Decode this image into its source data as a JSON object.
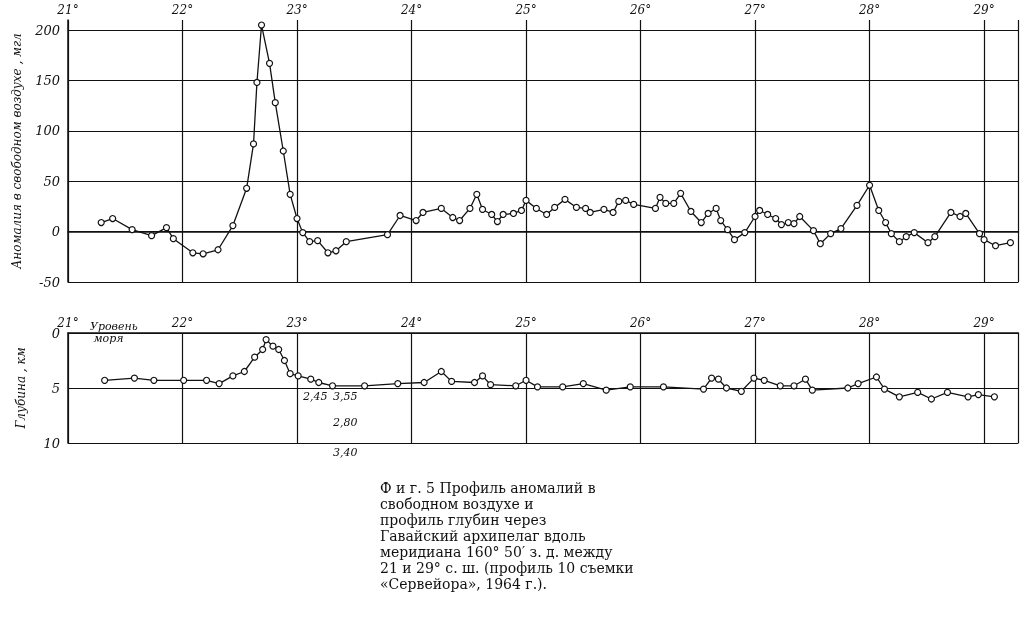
{
  "chart_data": [
    {
      "type": "line",
      "ylabel": "Аномалия в свободном воздухе , мгл",
      "xlim": [
        21,
        29.3
      ],
      "ylim": [
        -50,
        210
      ],
      "xticks": [
        {
          "value": 21,
          "label": "21°"
        },
        {
          "value": 22,
          "label": "22°"
        },
        {
          "value": 23,
          "label": "23°"
        },
        {
          "value": 24,
          "label": "24°"
        },
        {
          "value": 25,
          "label": "25°"
        },
        {
          "value": 26,
          "label": "26°"
        },
        {
          "value": 27,
          "label": "27°"
        },
        {
          "value": 28,
          "label": "28°"
        },
        {
          "value": 29,
          "label": "29°"
        }
      ],
      "yticks": [
        -50,
        0,
        50,
        100,
        150,
        200
      ],
      "grid": true,
      "marker": "circle",
      "line_style": "solid",
      "series": [
        {
          "color": "#111111",
          "x": [
            21.29,
            21.39,
            21.56,
            21.73,
            21.86,
            21.92,
            22.09,
            22.18,
            22.31,
            22.44,
            22.56,
            22.62,
            22.65,
            22.69,
            22.76,
            22.81,
            22.88,
            22.94,
            23.0,
            23.05,
            23.11,
            23.18,
            23.27,
            23.34,
            23.43,
            23.79,
            23.9,
            24.04,
            24.1,
            24.26,
            24.36,
            24.42,
            24.51,
            24.57,
            24.62,
            24.7,
            24.75,
            24.8,
            24.89,
            24.96,
            25.0,
            25.09,
            25.18,
            25.25,
            25.34,
            25.44,
            25.52,
            25.56,
            25.68,
            25.76,
            25.81,
            25.87,
            25.94,
            26.13,
            26.17,
            26.22,
            26.29,
            26.35,
            26.44,
            26.53,
            26.59,
            26.66,
            26.7,
            26.76,
            26.82,
            26.91,
            27.0,
            27.04,
            27.11,
            27.18,
            27.23,
            27.29,
            27.34,
            27.39,
            27.51,
            27.57,
            27.66,
            27.75,
            27.89,
            28.0,
            28.08,
            28.14,
            28.19,
            28.26,
            28.32,
            28.39,
            28.51,
            28.57,
            28.71,
            28.79,
            28.84,
            28.96,
            29.0,
            29.1,
            29.23
          ],
          "values": [
            9,
            13,
            2,
            -4,
            4,
            -7,
            -21,
            -22,
            -18,
            6,
            43,
            87,
            148,
            205,
            167,
            128,
            80,
            37,
            13,
            -1,
            -10,
            -9,
            -21,
            -19,
            -10,
            -3,
            16,
            11,
            19,
            23,
            14,
            11,
            23,
            37,
            22,
            17,
            10,
            17,
            18,
            21,
            31,
            23,
            17,
            24,
            32,
            24,
            23,
            19,
            22,
            19,
            30,
            31,
            27,
            23,
            34,
            28,
            28,
            38,
            20,
            9,
            18,
            23,
            11,
            2,
            -8,
            -1,
            15,
            21,
            17,
            13,
            7,
            9,
            8,
            15,
            1,
            -12,
            -2,
            3,
            26,
            46,
            21,
            9,
            -2,
            -10,
            -5,
            -1,
            -11,
            -5,
            19,
            15,
            18,
            -2,
            -8,
            -14,
            -11
          ]
        }
      ]
    },
    {
      "type": "line",
      "ylabel": "Глубина , км",
      "xlim": [
        21,
        29.3
      ],
      "ylim": [
        10,
        0
      ],
      "xticks": [
        {
          "value": 21,
          "label": "21°"
        },
        {
          "value": 22,
          "label": "22°"
        },
        {
          "value": 23,
          "label": "23°"
        },
        {
          "value": 24,
          "label": "24°"
        },
        {
          "value": 25,
          "label": "25°"
        },
        {
          "value": 26,
          "label": "26°"
        },
        {
          "value": 27,
          "label": "27°"
        },
        {
          "value": 28,
          "label": "28°"
        },
        {
          "value": 29,
          "label": "29°"
        }
      ],
      "yticks": [
        0,
        5,
        10
      ],
      "grid": true,
      "marker": "circle",
      "line_style": "solid",
      "series": [
        {
          "color": "#111111",
          "x": [
            21.32,
            21.58,
            21.75,
            22.01,
            22.21,
            22.32,
            22.44,
            22.54,
            22.63,
            22.7,
            22.73,
            22.79,
            22.84,
            22.89,
            22.94,
            23.01,
            23.12,
            23.19,
            23.31,
            23.59,
            23.88,
            24.11,
            24.26,
            24.35,
            24.55,
            24.62,
            24.69,
            24.91,
            25.0,
            25.1,
            25.32,
            25.5,
            25.7,
            25.91,
            26.2,
            26.55,
            26.62,
            26.68,
            26.75,
            26.88,
            26.99,
            27.08,
            27.22,
            27.34,
            27.44,
            27.5,
            27.81,
            27.9,
            28.06,
            28.13,
            28.26,
            28.42,
            28.54,
            28.68,
            28.86,
            28.95,
            29.09
          ],
          "values": [
            4.3,
            4.1,
            4.3,
            4.3,
            4.3,
            4.6,
            3.9,
            3.5,
            2.2,
            1.5,
            0.6,
            1.2,
            1.5,
            2.5,
            3.7,
            3.9,
            4.2,
            4.5,
            4.8,
            4.8,
            4.6,
            4.5,
            3.5,
            4.4,
            4.5,
            3.9,
            4.7,
            4.8,
            4.3,
            4.9,
            4.9,
            4.6,
            5.2,
            4.9,
            4.9,
            5.1,
            4.1,
            4.2,
            5.0,
            5.3,
            4.1,
            4.3,
            4.8,
            4.8,
            4.2,
            5.2,
            5.0,
            4.6,
            4.0,
            5.1,
            5.8,
            5.4,
            6.0,
            5.4,
            5.8,
            5.6,
            5.8
          ]
        }
      ],
      "annotations": [
        "Уровень моря",
        "2,45",
        "3,55",
        "2,80",
        "3,40",
        "Ф и г. 5 Профиль аномалий в свободном воздухе и профиль глубин через Гавайский архипелаг вдоль меридиана 160° 50′ з. д. между 21 и 29° с. ш. (профиль 10 съемки «Сервейора», 1964 г.)."
      ]
    }
  ]
}
